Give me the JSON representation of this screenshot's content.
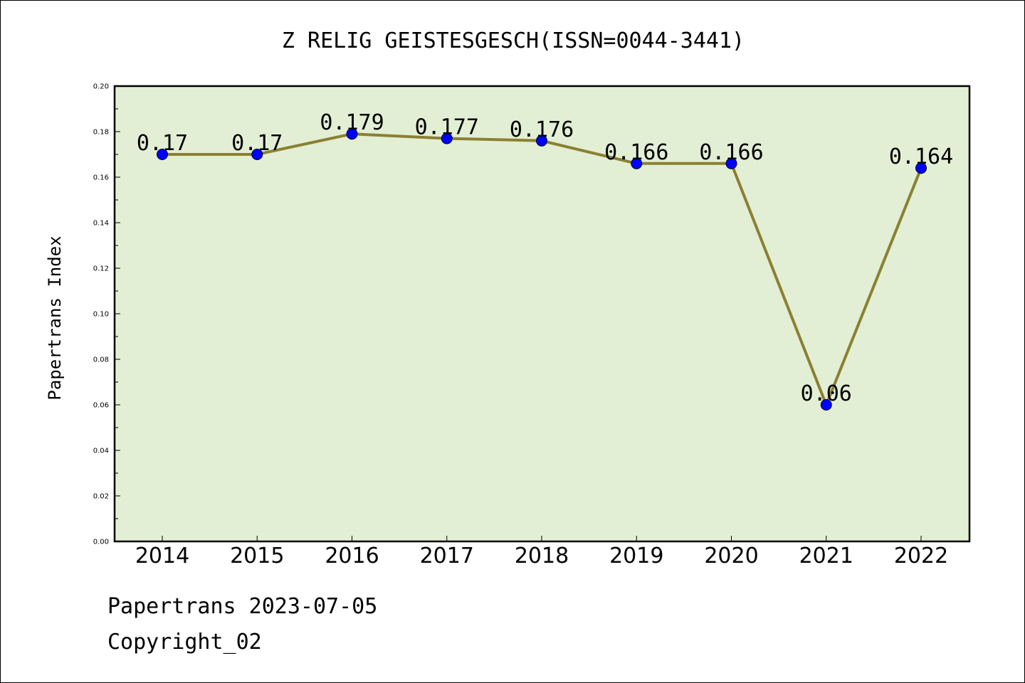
{
  "chart_data": {
    "type": "line",
    "title": "Z RELIG GEISTESGESCH(ISSN=0044-3441)",
    "xlabel": "",
    "ylabel": "Papertrans Index",
    "categories": [
      "2014",
      "2015",
      "2016",
      "2017",
      "2018",
      "2019",
      "2020",
      "2021",
      "2022"
    ],
    "values": [
      0.17,
      0.17,
      0.179,
      0.177,
      0.176,
      0.166,
      0.166,
      0.06,
      0.164
    ],
    "data_labels": [
      "0.17",
      "0.17",
      "0.179",
      "0.177",
      "0.176",
      "0.166",
      "0.166",
      "0.06",
      "0.164"
    ],
    "ylim": [
      0,
      0.2
    ],
    "yticks": [
      "0.00",
      "0.02",
      "0.04",
      "0.06",
      "0.08",
      "0.10",
      "0.12",
      "0.14",
      "0.16",
      "0.18",
      "0.20"
    ],
    "grid": false,
    "legend": "none",
    "colors": {
      "line": "#8b8032",
      "marker": "#0000ff",
      "plot_background": "#e2efd4",
      "axes": "#000000"
    }
  },
  "footer": {
    "line1": "Papertrans 2023-07-05",
    "line2": "Copyright_02"
  }
}
